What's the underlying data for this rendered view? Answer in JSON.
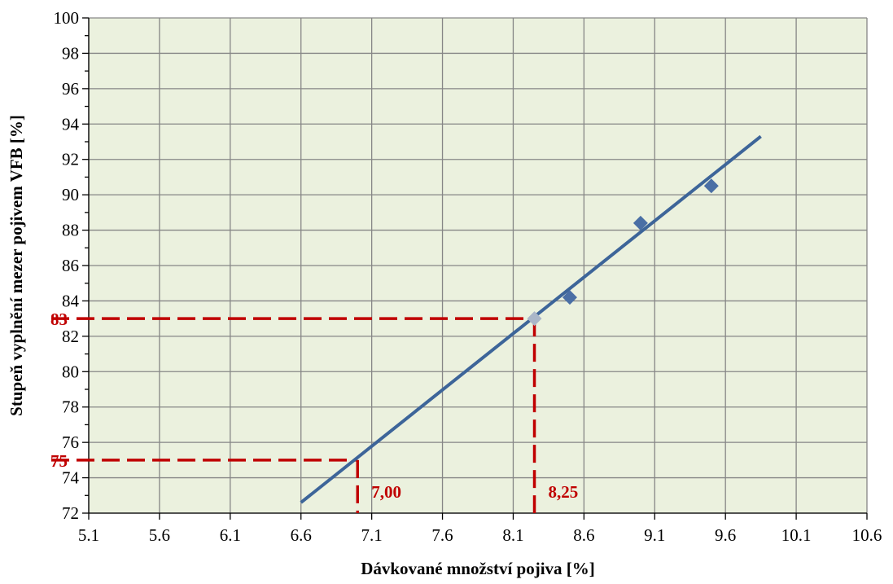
{
  "chart_data": {
    "type": "scatter",
    "title": "",
    "xlabel": "Dávkované množství pojiva [%]",
    "ylabel": "Stupeň vyplnění mezer pojivem VFB [%]",
    "xlim": [
      5.1,
      10.6
    ],
    "ylim": [
      72,
      100
    ],
    "x_ticks": [
      "5.1",
      "5.6",
      "6.1",
      "6.6",
      "7.1",
      "7.6",
      "8.1",
      "8.6",
      "9.1",
      "9.6",
      "10.1",
      "10.6"
    ],
    "y_ticks": [
      "72",
      "74",
      "76",
      "78",
      "80",
      "82",
      "84",
      "86",
      "88",
      "90",
      "92",
      "94",
      "96",
      "98",
      "100"
    ],
    "y_minor_step": 1,
    "grid": true,
    "legend": "none",
    "series": [
      {
        "kind": "points",
        "marker": "diamond",
        "color": "#4a6fa5",
        "points": [
          {
            "x": 8.25,
            "y": 83.0,
            "color": "#aab6c8"
          },
          {
            "x": 8.5,
            "y": 84.2
          },
          {
            "x": 9.0,
            "y": 88.4
          },
          {
            "x": 9.5,
            "y": 90.5
          }
        ]
      },
      {
        "kind": "trendline",
        "color": "#3d6599",
        "x": [
          6.6,
          9.85
        ],
        "y": [
          72.6,
          93.3
        ]
      }
    ],
    "annotations": [
      {
        "kind": "guide",
        "color": "#c00000",
        "y": 83,
        "x": 8.25,
        "y_label": "83",
        "x_label": "8,25"
      },
      {
        "kind": "guide",
        "color": "#c00000",
        "y": 75,
        "x": 7.0,
        "y_label": "75",
        "x_label": "7,00"
      }
    ],
    "colors": {
      "plot_background": "#ebf1de",
      "grid": "#868686",
      "axis": "#000000"
    }
  }
}
